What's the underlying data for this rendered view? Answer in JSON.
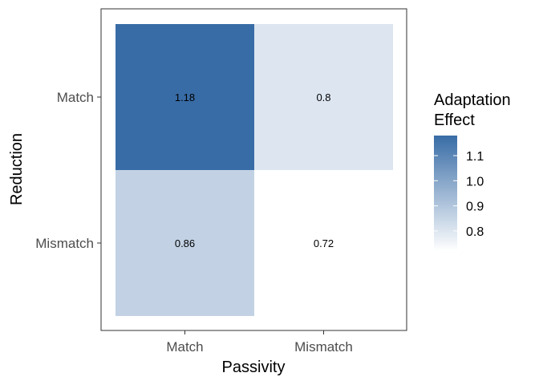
{
  "chart_data": {
    "type": "heatmap",
    "x_categories": [
      "Match",
      "Mismatch"
    ],
    "y_categories": [
      "Match",
      "Mismatch"
    ],
    "cells": [
      {
        "x": "Match",
        "y": "Match",
        "value": 1.18,
        "label": "1.18"
      },
      {
        "x": "Mismatch",
        "y": "Match",
        "value": 0.8,
        "label": "0.8"
      },
      {
        "x": "Match",
        "y": "Mismatch",
        "value": 0.86,
        "label": "0.86"
      },
      {
        "x": "Mismatch",
        "y": "Mismatch",
        "value": 0.72,
        "label": "0.72"
      }
    ],
    "xlabel": "Passivity",
    "ylabel": "Reduction",
    "legend": {
      "title_lines": [
        "Adaptation",
        "Effect"
      ],
      "ticks": [
        0.8,
        0.9,
        1.0,
        1.1
      ],
      "tick_labels": [
        "0.8",
        "0.9",
        "1.0",
        "1.1"
      ],
      "range": [
        0.72,
        1.18
      ],
      "placement": "right"
    },
    "colors": {
      "low": "#ffffff",
      "high": "#386ca6"
    },
    "grid": false
  }
}
